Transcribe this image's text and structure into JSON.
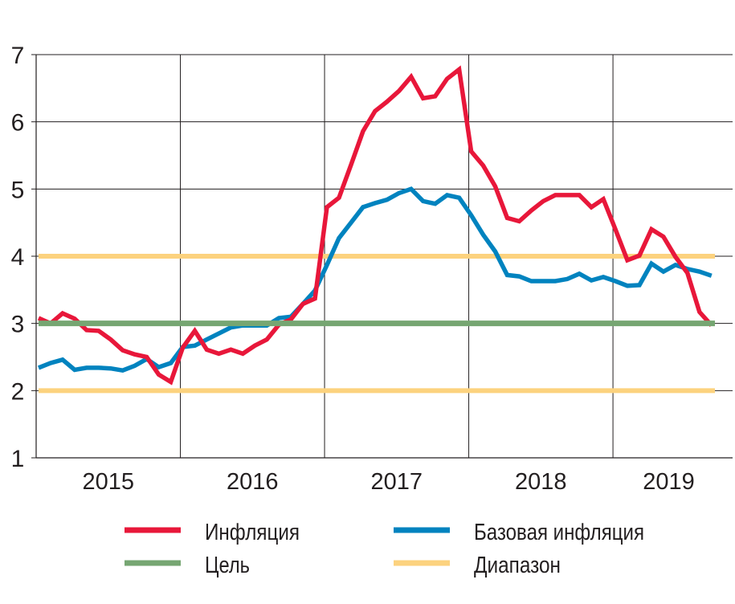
{
  "chart_data": {
    "type": "line",
    "title": "",
    "xlabel": "",
    "ylabel": "",
    "ylim": [
      1,
      7
    ],
    "yticks": [
      "1",
      "2",
      "3",
      "4",
      "5",
      "6",
      "7"
    ],
    "x_start": "2015-01",
    "x_step": "month",
    "xticks": [
      "2015",
      "2016",
      "2017",
      "2018",
      "2019"
    ],
    "grid": true,
    "legend_position": "bottom",
    "series": [
      {
        "name": "Инфляция",
        "color": "#e8173a",
        "values": [
          3.08,
          3.0,
          3.15,
          3.07,
          2.9,
          2.89,
          2.76,
          2.6,
          2.54,
          2.5,
          2.24,
          2.13,
          2.64,
          2.89,
          2.61,
          2.55,
          2.61,
          2.55,
          2.67,
          2.76,
          2.98,
          3.06,
          3.29,
          3.37,
          4.73,
          4.87,
          5.36,
          5.86,
          6.16,
          6.3,
          6.46,
          6.67,
          6.35,
          6.38,
          6.64,
          6.78,
          5.56,
          5.35,
          5.04,
          4.57,
          4.52,
          4.68,
          4.82,
          4.91,
          4.91,
          4.91,
          4.73,
          4.85,
          4.4,
          3.94,
          4.01,
          4.4,
          4.29,
          3.99,
          3.75,
          3.17,
          2.97
        ]
      },
      {
        "name": "Базовая инфляция",
        "color": "#0083bf",
        "values": [
          2.34,
          2.41,
          2.46,
          2.31,
          2.34,
          2.34,
          2.33,
          2.3,
          2.37,
          2.47,
          2.35,
          2.41,
          2.65,
          2.67,
          2.76,
          2.85,
          2.94,
          2.97,
          2.97,
          2.97,
          3.08,
          3.1,
          3.29,
          3.49,
          3.87,
          4.27,
          4.5,
          4.73,
          4.79,
          4.84,
          4.94,
          5.0,
          4.82,
          4.78,
          4.91,
          4.87,
          4.61,
          4.32,
          4.07,
          3.72,
          3.7,
          3.63,
          3.63,
          3.63,
          3.66,
          3.74,
          3.64,
          3.69,
          3.63,
          3.56,
          3.57,
          3.89,
          3.77,
          3.87,
          3.81,
          3.77,
          3.71
        ]
      },
      {
        "name": "Цель",
        "color": "#76a672",
        "constant": 3
      },
      {
        "name": "Диапазон",
        "color": "#fcd27e",
        "constant": [
          2,
          4
        ]
      }
    ]
  }
}
